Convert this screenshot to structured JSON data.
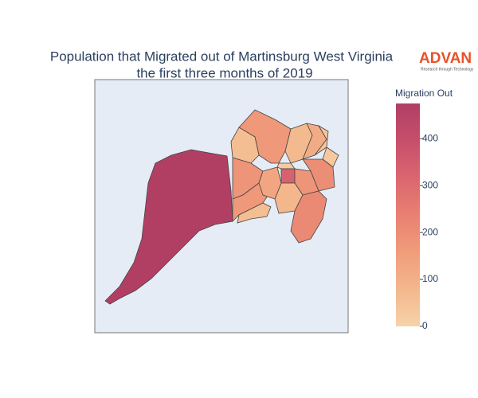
{
  "chart_data": {
    "type": "choropleth",
    "title": "Population that Migrated out of Martinsburg West Virginia",
    "subtitle": "the first three months of 2019",
    "logo": "ADVAN",
    "logo_tagline": "Research through Technology",
    "colorbar_title": "Migration Out",
    "zlim": [
      0,
      475
    ],
    "zticks": [
      0,
      100,
      200,
      300,
      400
    ],
    "colorscale": [
      "#f6d2a9",
      "#f4b78c",
      "#f09c7b",
      "#e98071",
      "#db6670",
      "#c64f6b",
      "#b13f64"
    ],
    "regions": [
      475,
      170,
      60,
      180,
      170,
      60,
      70,
      110,
      40,
      30,
      20,
      330,
      200,
      180,
      80,
      210,
      130
    ]
  }
}
